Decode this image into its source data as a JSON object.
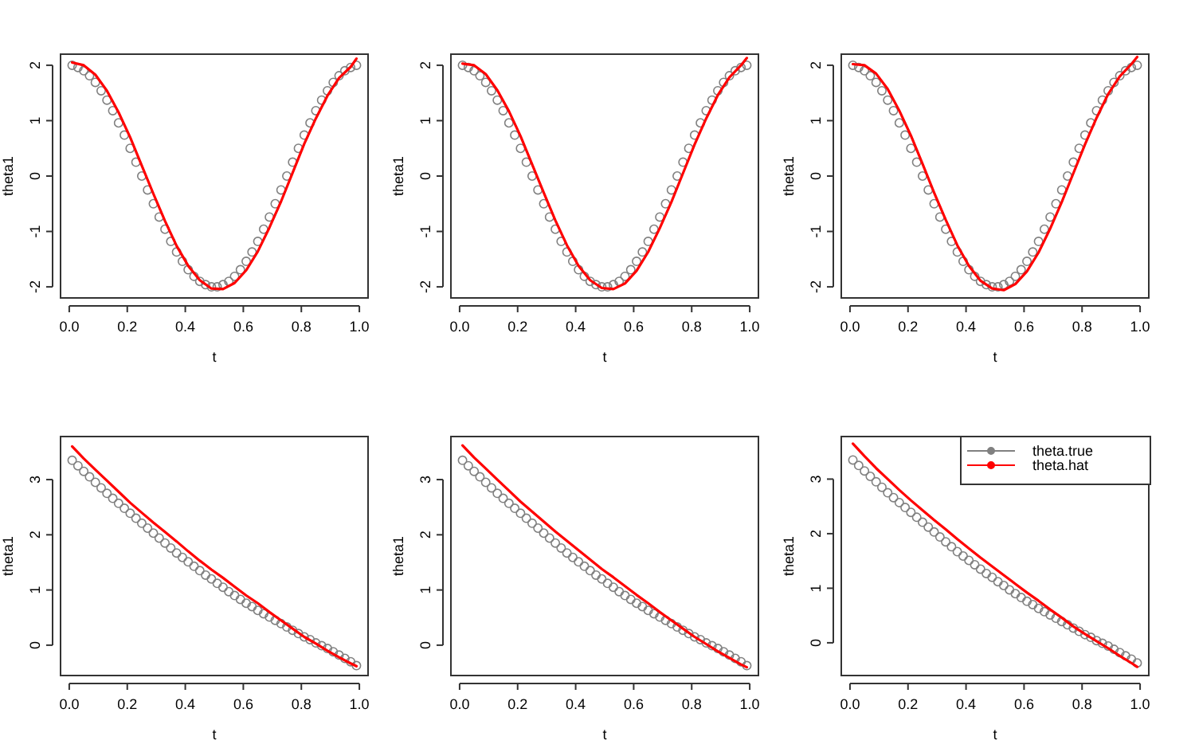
{
  "chart_data": [
    {
      "type": "line",
      "xlabel": "t",
      "ylabel": "theta1",
      "xlim": [
        -0.03,
        1.03
      ],
      "xticks": [
        {
          "value": 0,
          "label": "0.0"
        },
        {
          "value": 0.2,
          "label": "0.2"
        },
        {
          "value": 0.4,
          "label": "0.4"
        },
        {
          "value": 0.6,
          "label": "0.6"
        },
        {
          "value": 0.8,
          "label": "0.8"
        },
        {
          "value": 1,
          "label": "1.0"
        }
      ],
      "ylim": [
        -2.2,
        2.2
      ],
      "yticks": [
        -2,
        -1,
        0,
        1,
        2
      ],
      "legend": false,
      "series": [
        {
          "type": "scatter",
          "color": "#808080",
          "marker": "circle",
          "x": [
            0.01,
            0.03,
            0.05,
            0.07,
            0.09,
            0.11,
            0.13,
            0.15,
            0.17,
            0.19,
            0.21,
            0.23,
            0.25,
            0.27,
            0.29,
            0.31,
            0.33,
            0.35,
            0.37,
            0.39,
            0.41,
            0.43,
            0.45,
            0.47,
            0.49,
            0.51,
            0.53,
            0.55,
            0.57,
            0.59,
            0.61,
            0.63,
            0.65,
            0.67,
            0.69,
            0.71,
            0.73,
            0.75,
            0.77,
            0.79,
            0.81,
            0.83,
            0.85,
            0.87,
            0.89,
            0.91,
            0.93,
            0.95,
            0.97,
            0.99
          ],
          "values": [
            2.0,
            1.96,
            1.9,
            1.81,
            1.69,
            1.54,
            1.37,
            1.18,
            0.96,
            0.74,
            0.5,
            0.25,
            0.0,
            -0.25,
            -0.5,
            -0.74,
            -0.96,
            -1.18,
            -1.37,
            -1.54,
            -1.69,
            -1.81,
            -1.9,
            -1.96,
            -2.0,
            -2.0,
            -1.96,
            -1.9,
            -1.81,
            -1.69,
            -1.54,
            -1.37,
            -1.18,
            -0.96,
            -0.74,
            -0.5,
            -0.25,
            0.0,
            0.25,
            0.5,
            0.74,
            0.96,
            1.18,
            1.37,
            1.54,
            1.69,
            1.81,
            1.9,
            1.96,
            2.0
          ]
        },
        {
          "type": "line",
          "color": "#ff0000",
          "marker": "none",
          "x": [
            0.01,
            0.05,
            0.09,
            0.13,
            0.17,
            0.21,
            0.25,
            0.29,
            0.33,
            0.37,
            0.41,
            0.45,
            0.49,
            0.53,
            0.57,
            0.61,
            0.65,
            0.69,
            0.73,
            0.77,
            0.81,
            0.85,
            0.89,
            0.93,
            0.97,
            0.99
          ],
          "values": [
            2.05,
            2.0,
            1.83,
            1.54,
            1.15,
            0.7,
            0.19,
            -0.32,
            -0.81,
            -1.26,
            -1.62,
            -1.88,
            -2.03,
            -2.04,
            -1.93,
            -1.7,
            -1.36,
            -0.93,
            -0.46,
            0.06,
            0.58,
            1.04,
            1.45,
            1.77,
            1.97,
            2.12
          ]
        }
      ]
    },
    {
      "type": "line",
      "xlabel": "t",
      "ylabel": "theta1",
      "xlim": [
        -0.03,
        1.03
      ],
      "xticks": [
        {
          "value": 0,
          "label": "0.0"
        },
        {
          "value": 0.2,
          "label": "0.2"
        },
        {
          "value": 0.4,
          "label": "0.4"
        },
        {
          "value": 0.6,
          "label": "0.6"
        },
        {
          "value": 0.8,
          "label": "0.8"
        },
        {
          "value": 1,
          "label": "1.0"
        }
      ],
      "ylim": [
        -2.2,
        2.2
      ],
      "yticks": [
        -2,
        -1,
        0,
        1,
        2
      ],
      "legend": false,
      "series": [
        {
          "type": "scatter",
          "color": "#808080",
          "marker": "circle",
          "x": [
            0.01,
            0.03,
            0.05,
            0.07,
            0.09,
            0.11,
            0.13,
            0.15,
            0.17,
            0.19,
            0.21,
            0.23,
            0.25,
            0.27,
            0.29,
            0.31,
            0.33,
            0.35,
            0.37,
            0.39,
            0.41,
            0.43,
            0.45,
            0.47,
            0.49,
            0.51,
            0.53,
            0.55,
            0.57,
            0.59,
            0.61,
            0.63,
            0.65,
            0.67,
            0.69,
            0.71,
            0.73,
            0.75,
            0.77,
            0.79,
            0.81,
            0.83,
            0.85,
            0.87,
            0.89,
            0.91,
            0.93,
            0.95,
            0.97,
            0.99
          ],
          "values": [
            2.0,
            1.96,
            1.9,
            1.81,
            1.69,
            1.54,
            1.37,
            1.18,
            0.96,
            0.74,
            0.5,
            0.25,
            0.0,
            -0.25,
            -0.5,
            -0.74,
            -0.96,
            -1.18,
            -1.37,
            -1.54,
            -1.69,
            -1.81,
            -1.9,
            -1.96,
            -2.0,
            -2.0,
            -1.96,
            -1.9,
            -1.81,
            -1.69,
            -1.54,
            -1.37,
            -1.18,
            -0.96,
            -0.74,
            -0.5,
            -0.25,
            0.0,
            0.25,
            0.5,
            0.74,
            0.96,
            1.18,
            1.37,
            1.54,
            1.69,
            1.81,
            1.9,
            1.96,
            2.0
          ]
        },
        {
          "type": "line",
          "color": "#ff0000",
          "marker": "none",
          "x": [
            0.01,
            0.05,
            0.09,
            0.13,
            0.17,
            0.21,
            0.25,
            0.29,
            0.33,
            0.37,
            0.41,
            0.45,
            0.49,
            0.53,
            0.57,
            0.61,
            0.65,
            0.69,
            0.73,
            0.77,
            0.81,
            0.85,
            0.89,
            0.93,
            0.97,
            0.99
          ],
          "values": [
            2.03,
            2.0,
            1.84,
            1.55,
            1.17,
            0.72,
            0.21,
            -0.3,
            -0.8,
            -1.25,
            -1.62,
            -1.88,
            -2.02,
            -2.04,
            -1.94,
            -1.71,
            -1.37,
            -0.94,
            -0.47,
            0.05,
            0.57,
            1.04,
            1.46,
            1.78,
            2.0,
            2.13
          ]
        }
      ]
    },
    {
      "type": "line",
      "xlabel": "t",
      "ylabel": "theta1",
      "xlim": [
        -0.03,
        1.03
      ],
      "xticks": [
        {
          "value": 0,
          "label": "0.0"
        },
        {
          "value": 0.2,
          "label": "0.2"
        },
        {
          "value": 0.4,
          "label": "0.4"
        },
        {
          "value": 0.6,
          "label": "0.6"
        },
        {
          "value": 0.8,
          "label": "0.8"
        },
        {
          "value": 1,
          "label": "1.0"
        }
      ],
      "ylim": [
        -2.2,
        2.2
      ],
      "yticks": [
        -2,
        -1,
        0,
        1,
        2
      ],
      "legend": false,
      "series": [
        {
          "type": "scatter",
          "color": "#808080",
          "marker": "circle",
          "x": [
            0.01,
            0.03,
            0.05,
            0.07,
            0.09,
            0.11,
            0.13,
            0.15,
            0.17,
            0.19,
            0.21,
            0.23,
            0.25,
            0.27,
            0.29,
            0.31,
            0.33,
            0.35,
            0.37,
            0.39,
            0.41,
            0.43,
            0.45,
            0.47,
            0.49,
            0.51,
            0.53,
            0.55,
            0.57,
            0.59,
            0.61,
            0.63,
            0.65,
            0.67,
            0.69,
            0.71,
            0.73,
            0.75,
            0.77,
            0.79,
            0.81,
            0.83,
            0.85,
            0.87,
            0.89,
            0.91,
            0.93,
            0.95,
            0.97,
            0.99
          ],
          "values": [
            2.0,
            1.96,
            1.9,
            1.81,
            1.69,
            1.54,
            1.37,
            1.18,
            0.96,
            0.74,
            0.5,
            0.25,
            0.0,
            -0.25,
            -0.5,
            -0.74,
            -0.96,
            -1.18,
            -1.37,
            -1.54,
            -1.69,
            -1.81,
            -1.9,
            -1.96,
            -2.0,
            -2.0,
            -1.96,
            -1.9,
            -1.81,
            -1.69,
            -1.54,
            -1.37,
            -1.18,
            -0.96,
            -0.74,
            -0.5,
            -0.25,
            0.0,
            0.25,
            0.5,
            0.74,
            0.96,
            1.18,
            1.37,
            1.54,
            1.69,
            1.81,
            1.9,
            1.96,
            2.0
          ]
        },
        {
          "type": "line",
          "color": "#ff0000",
          "marker": "none",
          "x": [
            0.01,
            0.05,
            0.09,
            0.13,
            0.17,
            0.21,
            0.25,
            0.29,
            0.33,
            0.37,
            0.41,
            0.45,
            0.49,
            0.53,
            0.57,
            0.61,
            0.65,
            0.69,
            0.73,
            0.77,
            0.81,
            0.85,
            0.89,
            0.93,
            0.97,
            0.99
          ],
          "values": [
            2.02,
            2.0,
            1.85,
            1.57,
            1.18,
            0.73,
            0.22,
            -0.3,
            -0.79,
            -1.25,
            -1.62,
            -1.89,
            -2.03,
            -2.06,
            -1.95,
            -1.72,
            -1.38,
            -0.95,
            -0.47,
            0.05,
            0.57,
            1.05,
            1.48,
            1.8,
            2.02,
            2.15
          ]
        }
      ]
    },
    {
      "type": "line",
      "xlabel": "t",
      "ylabel": "theta1",
      "xlim": [
        -0.03,
        1.03
      ],
      "xticks": [
        {
          "value": 0,
          "label": "0.0"
        },
        {
          "value": 0.2,
          "label": "0.2"
        },
        {
          "value": 0.4,
          "label": "0.4"
        },
        {
          "value": 0.6,
          "label": "0.6"
        },
        {
          "value": 0.8,
          "label": "0.8"
        },
        {
          "value": 1,
          "label": "1.0"
        }
      ],
      "ylim": [
        -0.55,
        3.78
      ],
      "yticks": [
        0,
        1,
        2,
        3
      ],
      "legend": false,
      "series": [
        {
          "type": "scatter",
          "color": "#808080",
          "marker": "circle",
          "x": [
            0.01,
            0.03,
            0.05,
            0.07,
            0.09,
            0.11,
            0.13,
            0.15,
            0.17,
            0.19,
            0.21,
            0.23,
            0.25,
            0.27,
            0.29,
            0.31,
            0.33,
            0.35,
            0.37,
            0.39,
            0.41,
            0.43,
            0.45,
            0.47,
            0.49,
            0.51,
            0.53,
            0.55,
            0.57,
            0.59,
            0.61,
            0.63,
            0.65,
            0.67,
            0.69,
            0.71,
            0.73,
            0.75,
            0.77,
            0.79,
            0.81,
            0.83,
            0.85,
            0.87,
            0.89,
            0.91,
            0.93,
            0.95,
            0.97,
            0.99
          ],
          "values": [
            3.35,
            3.25,
            3.15,
            3.05,
            2.95,
            2.85,
            2.75,
            2.66,
            2.57,
            2.48,
            2.39,
            2.3,
            2.21,
            2.12,
            2.03,
            1.94,
            1.85,
            1.76,
            1.67,
            1.59,
            1.51,
            1.43,
            1.35,
            1.27,
            1.2,
            1.12,
            1.05,
            0.97,
            0.9,
            0.83,
            0.76,
            0.7,
            0.63,
            0.57,
            0.51,
            0.45,
            0.39,
            0.33,
            0.27,
            0.21,
            0.15,
            0.1,
            0.04,
            -0.01,
            -0.06,
            -0.12,
            -0.18,
            -0.24,
            -0.3,
            -0.37
          ]
        },
        {
          "type": "line",
          "color": "#ff0000",
          "marker": "none",
          "x": [
            0.01,
            0.05,
            0.09,
            0.13,
            0.17,
            0.21,
            0.25,
            0.29,
            0.33,
            0.37,
            0.41,
            0.45,
            0.49,
            0.53,
            0.57,
            0.61,
            0.65,
            0.69,
            0.73,
            0.77,
            0.81,
            0.85,
            0.89,
            0.93,
            0.97,
            0.99
          ],
          "values": [
            3.6,
            3.38,
            3.18,
            2.98,
            2.78,
            2.58,
            2.4,
            2.22,
            2.05,
            1.88,
            1.7,
            1.53,
            1.37,
            1.22,
            1.06,
            0.9,
            0.76,
            0.6,
            0.45,
            0.3,
            0.15,
            0.03,
            -0.1,
            -0.22,
            -0.33,
            -0.38
          ]
        }
      ]
    },
    {
      "type": "line",
      "xlabel": "t",
      "ylabel": "theta1",
      "xlim": [
        -0.03,
        1.03
      ],
      "xticks": [
        {
          "value": 0,
          "label": "0.0"
        },
        {
          "value": 0.2,
          "label": "0.2"
        },
        {
          "value": 0.4,
          "label": "0.4"
        },
        {
          "value": 0.6,
          "label": "0.6"
        },
        {
          "value": 0.8,
          "label": "0.8"
        },
        {
          "value": 1,
          "label": "1.0"
        }
      ],
      "ylim": [
        -0.55,
        3.78
      ],
      "yticks": [
        0,
        1,
        2,
        3
      ],
      "legend": false,
      "series": [
        {
          "type": "scatter",
          "color": "#808080",
          "marker": "circle",
          "x": [
            0.01,
            0.03,
            0.05,
            0.07,
            0.09,
            0.11,
            0.13,
            0.15,
            0.17,
            0.19,
            0.21,
            0.23,
            0.25,
            0.27,
            0.29,
            0.31,
            0.33,
            0.35,
            0.37,
            0.39,
            0.41,
            0.43,
            0.45,
            0.47,
            0.49,
            0.51,
            0.53,
            0.55,
            0.57,
            0.59,
            0.61,
            0.63,
            0.65,
            0.67,
            0.69,
            0.71,
            0.73,
            0.75,
            0.77,
            0.79,
            0.81,
            0.83,
            0.85,
            0.87,
            0.89,
            0.91,
            0.93,
            0.95,
            0.97,
            0.99
          ],
          "values": [
            3.35,
            3.25,
            3.15,
            3.05,
            2.95,
            2.85,
            2.75,
            2.66,
            2.57,
            2.48,
            2.39,
            2.3,
            2.21,
            2.12,
            2.03,
            1.94,
            1.85,
            1.76,
            1.67,
            1.59,
            1.51,
            1.43,
            1.35,
            1.27,
            1.2,
            1.12,
            1.05,
            0.97,
            0.9,
            0.83,
            0.76,
            0.7,
            0.63,
            0.57,
            0.51,
            0.45,
            0.39,
            0.33,
            0.27,
            0.21,
            0.15,
            0.1,
            0.04,
            -0.01,
            -0.06,
            -0.12,
            -0.18,
            -0.24,
            -0.3,
            -0.37
          ]
        },
        {
          "type": "line",
          "color": "#ff0000",
          "marker": "none",
          "x": [
            0.01,
            0.05,
            0.09,
            0.13,
            0.17,
            0.21,
            0.25,
            0.29,
            0.33,
            0.37,
            0.41,
            0.45,
            0.49,
            0.53,
            0.57,
            0.61,
            0.65,
            0.69,
            0.73,
            0.77,
            0.81,
            0.85,
            0.89,
            0.93,
            0.97,
            0.99
          ],
          "values": [
            3.62,
            3.4,
            3.2,
            3.0,
            2.8,
            2.6,
            2.42,
            2.24,
            2.06,
            1.89,
            1.72,
            1.55,
            1.38,
            1.23,
            1.07,
            0.91,
            0.76,
            0.6,
            0.45,
            0.3,
            0.15,
            0.02,
            -0.11,
            -0.23,
            -0.35,
            -0.4
          ]
        }
      ]
    },
    {
      "type": "line",
      "xlabel": "t",
      "ylabel": "theta1",
      "xlim": [
        -0.03,
        1.03
      ],
      "xticks": [
        {
          "value": 0,
          "label": "0.0"
        },
        {
          "value": 0.2,
          "label": "0.2"
        },
        {
          "value": 0.4,
          "label": "0.4"
        },
        {
          "value": 0.6,
          "label": "0.6"
        },
        {
          "value": 0.8,
          "label": "0.8"
        },
        {
          "value": 1,
          "label": "1.0"
        }
      ],
      "ylim": [
        -0.6,
        3.78
      ],
      "yticks": [
        0,
        1,
        2,
        3
      ],
      "legend": "top right",
      "series": [
        {
          "name": "theta.true",
          "type": "scatter",
          "color": "#808080",
          "marker": "circle",
          "x": [
            0.01,
            0.03,
            0.05,
            0.07,
            0.09,
            0.11,
            0.13,
            0.15,
            0.17,
            0.19,
            0.21,
            0.23,
            0.25,
            0.27,
            0.29,
            0.31,
            0.33,
            0.35,
            0.37,
            0.39,
            0.41,
            0.43,
            0.45,
            0.47,
            0.49,
            0.51,
            0.53,
            0.55,
            0.57,
            0.59,
            0.61,
            0.63,
            0.65,
            0.67,
            0.69,
            0.71,
            0.73,
            0.75,
            0.77,
            0.79,
            0.81,
            0.83,
            0.85,
            0.87,
            0.89,
            0.91,
            0.93,
            0.95,
            0.97,
            0.99
          ],
          "values": [
            3.35,
            3.25,
            3.15,
            3.05,
            2.95,
            2.85,
            2.75,
            2.66,
            2.57,
            2.48,
            2.39,
            2.3,
            2.21,
            2.12,
            2.03,
            1.94,
            1.85,
            1.76,
            1.67,
            1.59,
            1.51,
            1.43,
            1.35,
            1.27,
            1.2,
            1.12,
            1.05,
            0.97,
            0.9,
            0.83,
            0.76,
            0.7,
            0.63,
            0.57,
            0.51,
            0.45,
            0.39,
            0.33,
            0.27,
            0.21,
            0.15,
            0.1,
            0.04,
            -0.01,
            -0.06,
            -0.12,
            -0.18,
            -0.24,
            -0.3,
            -0.37
          ]
        },
        {
          "name": "theta.hat",
          "type": "line",
          "color": "#ff0000",
          "marker": "none",
          "x": [
            0.01,
            0.05,
            0.09,
            0.13,
            0.17,
            0.21,
            0.25,
            0.29,
            0.33,
            0.37,
            0.41,
            0.45,
            0.49,
            0.53,
            0.57,
            0.61,
            0.65,
            0.69,
            0.73,
            0.77,
            0.81,
            0.85,
            0.89,
            0.93,
            0.97,
            0.99
          ],
          "values": [
            3.65,
            3.42,
            3.2,
            3.0,
            2.8,
            2.61,
            2.43,
            2.25,
            2.08,
            1.9,
            1.73,
            1.56,
            1.4,
            1.24,
            1.08,
            0.92,
            0.77,
            0.61,
            0.46,
            0.3,
            0.16,
            0.03,
            -0.1,
            -0.24,
            -0.37,
            -0.44
          ]
        }
      ]
    }
  ]
}
